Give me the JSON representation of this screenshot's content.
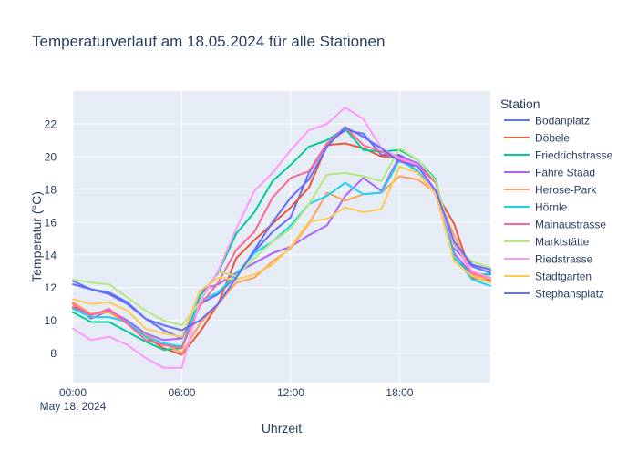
{
  "chart_data": {
    "type": "line",
    "title": "Temperaturverlauf am 18.05.2024 für alle Stationen",
    "xlabel": "Uhrzeit",
    "ylabel": "Temperatur (°C)",
    "legend_title": "Station",
    "legend_position": "right",
    "grid": true,
    "x_range_hours": [
      0,
      23
    ],
    "ylim": [
      6.2,
      24.0
    ],
    "x_ticks": [
      {
        "hour": 0,
        "label": "00:00",
        "sublabel": "May 18, 2024"
      },
      {
        "hour": 6,
        "label": "06:00",
        "sublabel": ""
      },
      {
        "hour": 12,
        "label": "12:00",
        "sublabel": ""
      },
      {
        "hour": 18,
        "label": "18:00",
        "sublabel": ""
      }
    ],
    "y_ticks": [
      8,
      10,
      12,
      14,
      16,
      18,
      20,
      22
    ],
    "x": [
      0,
      1,
      2,
      3,
      4,
      5,
      6,
      7,
      8,
      9,
      10,
      11,
      12,
      13,
      14,
      15,
      16,
      17,
      18,
      19,
      20,
      21,
      22,
      23
    ],
    "series": [
      {
        "name": "Bodanplatz",
        "color": "#636efa",
        "values": [
          12.4,
          11.9,
          11.7,
          11.1,
          10.1,
          9.4,
          8.9,
          11.0,
          11.6,
          12.7,
          14.2,
          15.4,
          16.3,
          19.0,
          20.8,
          21.6,
          21.4,
          20.1,
          20.1,
          19.5,
          18.4,
          14.4,
          13.3,
          12.9
        ]
      },
      {
        "name": "Döbele",
        "color": "#ef553b",
        "values": [
          10.8,
          10.4,
          10.5,
          9.8,
          9.0,
          8.3,
          7.9,
          9.3,
          11.0,
          13.8,
          14.9,
          15.9,
          16.9,
          18.1,
          20.7,
          20.8,
          20.5,
          20.0,
          20.0,
          19.1,
          17.8,
          15.9,
          12.6,
          12.4
        ]
      },
      {
        "name": "Friedrichstrasse",
        "color": "#00cc96",
        "values": [
          10.5,
          9.9,
          9.9,
          9.3,
          8.7,
          8.2,
          8.3,
          11.5,
          12.9,
          15.3,
          16.6,
          18.5,
          19.5,
          20.6,
          21.0,
          21.7,
          20.4,
          20.3,
          20.4,
          19.8,
          18.6,
          13.8,
          12.8,
          12.8
        ]
      },
      {
        "name": "Fähre Staad",
        "color": "#ab63fa",
        "values": [
          11.0,
          10.1,
          10.6,
          10.0,
          9.2,
          8.8,
          8.9,
          11.8,
          12.2,
          12.9,
          13.5,
          14.1,
          14.5,
          15.2,
          15.8,
          17.6,
          18.7,
          17.9,
          20.0,
          19.6,
          18.4,
          14.1,
          12.8,
          12.5
        ]
      },
      {
        "name": "Herose-Park",
        "color": "#ffa15a",
        "values": [
          11.1,
          10.4,
          10.5,
          9.8,
          9.1,
          8.6,
          8.0,
          9.8,
          11.0,
          12.3,
          12.6,
          13.6,
          14.4,
          15.9,
          17.8,
          17.3,
          17.7,
          17.8,
          18.8,
          18.6,
          17.8,
          15.2,
          12.8,
          12.5
        ]
      },
      {
        "name": "Hörnle",
        "color": "#19d3f3",
        "values": [
          10.7,
          10.2,
          10.2,
          9.9,
          9.0,
          8.6,
          8.4,
          11.2,
          11.7,
          12.8,
          14.1,
          14.8,
          15.8,
          17.1,
          17.6,
          18.4,
          17.7,
          17.8,
          19.8,
          19.1,
          17.9,
          13.9,
          12.5,
          12.1
        ]
      },
      {
        "name": "Mainaustrasse",
        "color": "#ff6692",
        "values": [
          11.0,
          10.3,
          10.7,
          9.8,
          8.8,
          8.5,
          8.3,
          10.9,
          12.3,
          14.3,
          15.4,
          17.5,
          18.7,
          19.1,
          20.8,
          21.8,
          20.7,
          20.3,
          19.8,
          19.4,
          18.4,
          14.7,
          12.9,
          12.6
        ]
      },
      {
        "name": "Marktstätte",
        "color": "#b6e880",
        "values": [
          12.5,
          12.3,
          12.2,
          11.4,
          10.6,
          10.0,
          9.7,
          11.1,
          13.0,
          12.7,
          13.8,
          14.8,
          15.6,
          17.1,
          18.9,
          19.0,
          18.8,
          18.5,
          20.5,
          19.8,
          18.5,
          14.5,
          13.6,
          13.2
        ]
      },
      {
        "name": "Riedstrasse",
        "color": "#ff97ff",
        "values": [
          9.5,
          8.8,
          9.0,
          8.5,
          7.7,
          7.1,
          7.1,
          11.2,
          13.0,
          15.6,
          17.9,
          19.0,
          20.4,
          21.6,
          22.0,
          23.0,
          22.3,
          20.5,
          19.9,
          19.5,
          17.6,
          14.7,
          13.0,
          12.6
        ]
      },
      {
        "name": "Stadtgarten",
        "color": "#fecb52",
        "values": [
          11.3,
          11.0,
          11.1,
          10.6,
          9.5,
          9.2,
          9.0,
          11.8,
          12.6,
          12.5,
          12.8,
          13.4,
          14.5,
          16.0,
          16.2,
          16.9,
          16.6,
          16.8,
          19.4,
          19.0,
          17.7,
          13.6,
          12.7,
          12.3
        ]
      },
      {
        "name": "Stephansplatz",
        "color": "#636efa",
        "values": [
          12.2,
          11.9,
          11.6,
          11.0,
          10.1,
          9.7,
          9.4,
          10.0,
          11.0,
          12.6,
          14.3,
          16.0,
          17.5,
          18.6,
          20.6,
          21.8,
          21.2,
          20.5,
          19.7,
          19.4,
          17.9,
          14.8,
          13.4,
          13.1
        ]
      }
    ]
  }
}
